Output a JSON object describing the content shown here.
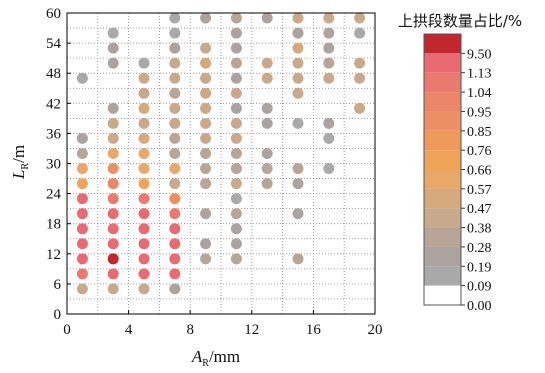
{
  "chart_data": {
    "type": "scatter",
    "xlabel": {
      "main": "A",
      "sub": "R",
      "unit": "/mm"
    },
    "ylabel": {
      "main": "L",
      "sub": "R",
      "unit": "/m"
    },
    "xlim": [
      0,
      20
    ],
    "ylim": [
      0,
      60
    ],
    "xticks": [
      0,
      4,
      8,
      12,
      16,
      20
    ],
    "yticks": [
      0,
      6,
      12,
      18,
      24,
      30,
      36,
      42,
      48,
      54,
      60
    ],
    "grid": "dotted, minor spacing 2 (x) and 3 (y)",
    "legend": {
      "title": "上拱段数量占比/%",
      "position": "right",
      "levels": [
        "9.50",
        "1.13",
        "1.04",
        "0.95",
        "0.85",
        "0.76",
        "0.66",
        "0.57",
        "0.47",
        "0.38",
        "0.28",
        "0.19",
        "0.09",
        "0.00"
      ],
      "colors": [
        "#c1272d",
        "#e96b71",
        "#e97a6d",
        "#eb8668",
        "#ec8f63",
        "#ee9a5c",
        "#f0a458",
        "#e9a868",
        "#d6a97c",
        "#c9a98b",
        "#b8a596",
        "#aaa39f",
        "#a9a9a9",
        "#ffffff"
      ]
    },
    "points": [
      {
        "x": 1,
        "y": 5,
        "level": "0.38"
      },
      {
        "x": 1,
        "y": 8,
        "level": "1.04"
      },
      {
        "x": 1,
        "y": 11,
        "level": "1.13"
      },
      {
        "x": 1,
        "y": 14,
        "level": "1.13"
      },
      {
        "x": 1,
        "y": 17,
        "level": "1.13"
      },
      {
        "x": 1,
        "y": 20,
        "level": "1.13"
      },
      {
        "x": 1,
        "y": 23,
        "level": "1.13"
      },
      {
        "x": 1,
        "y": 26,
        "level": "0.66"
      },
      {
        "x": 1,
        "y": 29,
        "level": "0.57"
      },
      {
        "x": 1,
        "y": 32,
        "level": "0.28"
      },
      {
        "x": 1,
        "y": 35,
        "level": "0.19"
      },
      {
        "x": 1,
        "y": 47,
        "level": "0.09"
      },
      {
        "x": 3,
        "y": 5,
        "level": "0.38"
      },
      {
        "x": 3,
        "y": 8,
        "level": "1.13"
      },
      {
        "x": 3,
        "y": 11,
        "level": "9.50"
      },
      {
        "x": 3,
        "y": 14,
        "level": "1.13"
      },
      {
        "x": 3,
        "y": 17,
        "level": "1.13"
      },
      {
        "x": 3,
        "y": 20,
        "level": "1.13"
      },
      {
        "x": 3,
        "y": 23,
        "level": "1.04"
      },
      {
        "x": 3,
        "y": 26,
        "level": "0.95"
      },
      {
        "x": 3,
        "y": 29,
        "level": "0.85"
      },
      {
        "x": 3,
        "y": 32,
        "level": "0.57"
      },
      {
        "x": 3,
        "y": 35,
        "level": "0.38"
      },
      {
        "x": 3,
        "y": 38,
        "level": "0.38"
      },
      {
        "x": 3,
        "y": 41,
        "level": "0.19"
      },
      {
        "x": 3,
        "y": 50,
        "level": "0.19"
      },
      {
        "x": 3,
        "y": 53,
        "level": "0.19"
      },
      {
        "x": 3,
        "y": 56,
        "level": "0.09"
      },
      {
        "x": 5,
        "y": 5,
        "level": "0.38"
      },
      {
        "x": 5,
        "y": 8,
        "level": "1.13"
      },
      {
        "x": 5,
        "y": 11,
        "level": "1.13"
      },
      {
        "x": 5,
        "y": 14,
        "level": "1.13"
      },
      {
        "x": 5,
        "y": 17,
        "level": "1.13"
      },
      {
        "x": 5,
        "y": 20,
        "level": "1.13"
      },
      {
        "x": 5,
        "y": 23,
        "level": "1.04"
      },
      {
        "x": 5,
        "y": 26,
        "level": "0.66"
      },
      {
        "x": 5,
        "y": 29,
        "level": "0.57"
      },
      {
        "x": 5,
        "y": 32,
        "level": "0.57"
      },
      {
        "x": 5,
        "y": 35,
        "level": "0.47"
      },
      {
        "x": 5,
        "y": 38,
        "level": "0.38"
      },
      {
        "x": 5,
        "y": 41,
        "level": "0.47"
      },
      {
        "x": 5,
        "y": 44,
        "level": "0.38"
      },
      {
        "x": 5,
        "y": 47,
        "level": "0.38"
      },
      {
        "x": 5,
        "y": 50,
        "level": "0.09"
      },
      {
        "x": 7,
        "y": 5,
        "level": "0.19"
      },
      {
        "x": 7,
        "y": 8,
        "level": "1.13"
      },
      {
        "x": 7,
        "y": 11,
        "level": "1.13"
      },
      {
        "x": 7,
        "y": 14,
        "level": "1.13"
      },
      {
        "x": 7,
        "y": 17,
        "level": "1.13"
      },
      {
        "x": 7,
        "y": 20,
        "level": "1.04"
      },
      {
        "x": 7,
        "y": 23,
        "level": "0.85"
      },
      {
        "x": 7,
        "y": 26,
        "level": "0.38"
      },
      {
        "x": 7,
        "y": 29,
        "level": "0.57"
      },
      {
        "x": 7,
        "y": 32,
        "level": "0.28"
      },
      {
        "x": 7,
        "y": 35,
        "level": "0.28"
      },
      {
        "x": 7,
        "y": 38,
        "level": "0.38"
      },
      {
        "x": 7,
        "y": 41,
        "level": "0.38"
      },
      {
        "x": 7,
        "y": 44,
        "level": "0.28"
      },
      {
        "x": 7,
        "y": 47,
        "level": "0.38"
      },
      {
        "x": 7,
        "y": 50,
        "level": "0.38"
      },
      {
        "x": 7,
        "y": 53,
        "level": "0.19"
      },
      {
        "x": 7,
        "y": 56,
        "level": "0.09"
      },
      {
        "x": 7,
        "y": 59,
        "level": "0.09"
      },
      {
        "x": 9,
        "y": 11,
        "level": "0.28"
      },
      {
        "x": 9,
        "y": 14,
        "level": "0.19"
      },
      {
        "x": 9,
        "y": 20,
        "level": "0.19"
      },
      {
        "x": 9,
        "y": 26,
        "level": "0.28"
      },
      {
        "x": 9,
        "y": 29,
        "level": "0.28"
      },
      {
        "x": 9,
        "y": 32,
        "level": "0.28"
      },
      {
        "x": 9,
        "y": 35,
        "level": "0.38"
      },
      {
        "x": 9,
        "y": 38,
        "level": "0.38"
      },
      {
        "x": 9,
        "y": 41,
        "level": "0.38"
      },
      {
        "x": 9,
        "y": 44,
        "level": "0.38"
      },
      {
        "x": 9,
        "y": 47,
        "level": "0.38"
      },
      {
        "x": 9,
        "y": 50,
        "level": "0.47"
      },
      {
        "x": 9,
        "y": 53,
        "level": "0.38"
      },
      {
        "x": 9,
        "y": 59,
        "level": "0.19"
      },
      {
        "x": 11,
        "y": 11,
        "level": "0.28"
      },
      {
        "x": 11,
        "y": 14,
        "level": "0.19"
      },
      {
        "x": 11,
        "y": 17,
        "level": "0.19"
      },
      {
        "x": 11,
        "y": 20,
        "level": "0.28"
      },
      {
        "x": 11,
        "y": 23,
        "level": "0.09"
      },
      {
        "x": 11,
        "y": 26,
        "level": "0.38"
      },
      {
        "x": 11,
        "y": 29,
        "level": "0.28"
      },
      {
        "x": 11,
        "y": 32,
        "level": "0.28"
      },
      {
        "x": 11,
        "y": 35,
        "level": "0.38"
      },
      {
        "x": 11,
        "y": 38,
        "level": "0.38"
      },
      {
        "x": 11,
        "y": 41,
        "level": "0.19"
      },
      {
        "x": 11,
        "y": 44,
        "level": "0.38"
      },
      {
        "x": 11,
        "y": 47,
        "level": "0.19"
      },
      {
        "x": 11,
        "y": 50,
        "level": "0.28"
      },
      {
        "x": 11,
        "y": 53,
        "level": "0.19"
      },
      {
        "x": 11,
        "y": 56,
        "level": "0.19"
      },
      {
        "x": 11,
        "y": 59,
        "level": "0.28"
      },
      {
        "x": 13,
        "y": 26,
        "level": "0.28"
      },
      {
        "x": 13,
        "y": 29,
        "level": "0.28"
      },
      {
        "x": 13,
        "y": 32,
        "level": "0.19"
      },
      {
        "x": 13,
        "y": 38,
        "level": "0.19"
      },
      {
        "x": 13,
        "y": 41,
        "level": "0.19"
      },
      {
        "x": 13,
        "y": 47,
        "level": "0.38"
      },
      {
        "x": 13,
        "y": 50,
        "level": "0.38"
      },
      {
        "x": 13,
        "y": 59,
        "level": "0.19"
      },
      {
        "x": 15,
        "y": 11,
        "level": "0.28"
      },
      {
        "x": 15,
        "y": 20,
        "level": "0.19"
      },
      {
        "x": 15,
        "y": 26,
        "level": "0.19"
      },
      {
        "x": 15,
        "y": 29,
        "level": "0.28"
      },
      {
        "x": 15,
        "y": 38,
        "level": "0.09"
      },
      {
        "x": 15,
        "y": 44,
        "level": "0.38"
      },
      {
        "x": 15,
        "y": 47,
        "level": "0.38"
      },
      {
        "x": 15,
        "y": 50,
        "level": "0.38"
      },
      {
        "x": 15,
        "y": 53,
        "level": "0.47"
      },
      {
        "x": 15,
        "y": 56,
        "level": "0.19"
      },
      {
        "x": 15,
        "y": 59,
        "level": "0.38"
      },
      {
        "x": 17,
        "y": 29,
        "level": "0.09"
      },
      {
        "x": 17,
        "y": 35,
        "level": "0.09"
      },
      {
        "x": 17,
        "y": 38,
        "level": "0.19"
      },
      {
        "x": 17,
        "y": 47,
        "level": "0.38"
      },
      {
        "x": 17,
        "y": 50,
        "level": "0.28"
      },
      {
        "x": 17,
        "y": 53,
        "level": "0.19"
      },
      {
        "x": 17,
        "y": 56,
        "level": "0.19"
      },
      {
        "x": 17,
        "y": 59,
        "level": "0.38"
      },
      {
        "x": 19,
        "y": 41,
        "level": "0.38"
      },
      {
        "x": 19,
        "y": 47,
        "level": "0.38"
      },
      {
        "x": 19,
        "y": 50,
        "level": "0.38"
      },
      {
        "x": 19,
        "y": 56,
        "level": "0.09"
      },
      {
        "x": 19,
        "y": 59,
        "level": "0.38"
      }
    ]
  }
}
